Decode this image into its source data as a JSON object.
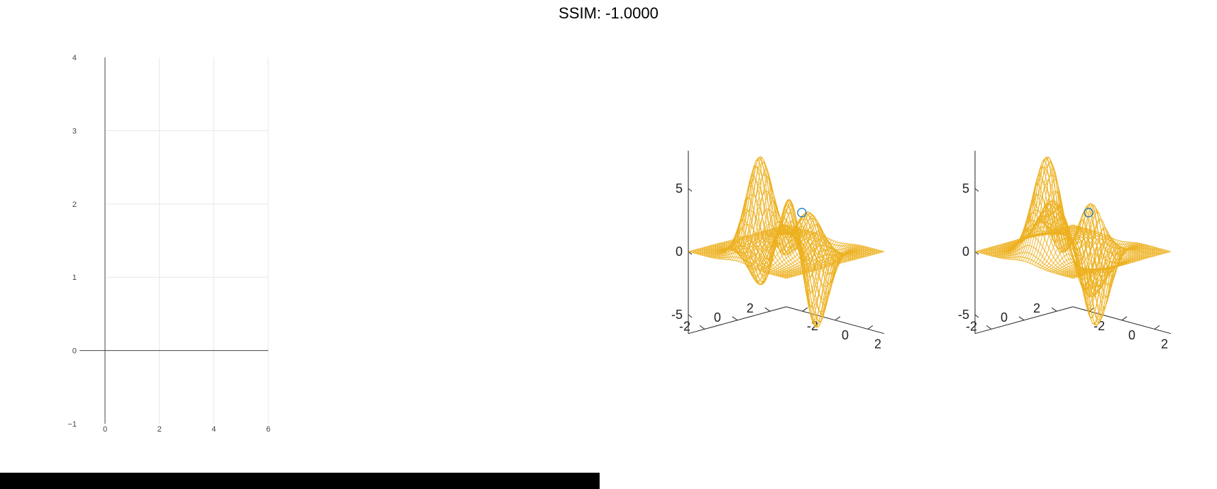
{
  "figure": {
    "title": "SSIM: -1.0000"
  },
  "colors": {
    "mesh": "#EDB120",
    "marker": "#0072BD",
    "grid": "#e8e8e8",
    "axis": "#444444",
    "black_bar": "#000000"
  },
  "chart_data": [
    {
      "type": "line",
      "title": "",
      "xlabel": "",
      "ylabel": "",
      "xlim": [
        0,
        6
      ],
      "ylim": [
        -1,
        4
      ],
      "x_ticks": [
        "0",
        "2",
        "4",
        "6"
      ],
      "y_ticks": [
        "−1",
        "0",
        "1",
        "2",
        "3",
        "4"
      ],
      "grid": true,
      "series": []
    },
    {
      "type": "surface-mesh",
      "title": "",
      "xlim": [
        -3,
        3
      ],
      "ylim": [
        -3,
        3
      ],
      "zlim": [
        -6.5,
        8
      ],
      "x_ticks": [
        "-2",
        "0",
        "2"
      ],
      "y_ticks": [
        "-2",
        "0",
        "2"
      ],
      "z_ticks": [
        "-5",
        "0",
        "5"
      ],
      "marker": {
        "x": -3,
        "y": 3,
        "z": 5
      },
      "view": "default"
    },
    {
      "type": "surface-mesh",
      "title": "",
      "xlim": [
        -3,
        3
      ],
      "ylim": [
        -3,
        3
      ],
      "zlim": [
        -6.5,
        8
      ],
      "x_ticks": [
        "-2",
        "0",
        "2"
      ],
      "y_ticks": [
        "-2",
        "0",
        "2"
      ],
      "z_ticks": [
        "-5",
        "0",
        "5"
      ],
      "marker": {
        "x": -3,
        "y": 3,
        "z": 5
      },
      "view": "mirrored"
    }
  ]
}
